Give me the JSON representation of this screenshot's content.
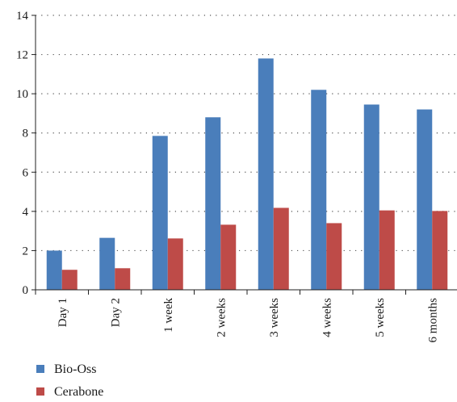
{
  "chart_data": {
    "type": "bar",
    "categories": [
      "Day 1",
      "Day 2",
      "1 week",
      "2 weeks",
      "3 weeks",
      "4 weeks",
      "5 weeks",
      "6 months"
    ],
    "series": [
      {
        "name": "Bio-Oss",
        "color": "#4a7ebb",
        "values": [
          2.0,
          2.65,
          7.85,
          8.8,
          11.8,
          10.2,
          9.45,
          9.2
        ]
      },
      {
        "name": "Cerabone",
        "color": "#be4b48",
        "values": [
          1.02,
          1.1,
          2.62,
          3.32,
          4.18,
          3.4,
          4.05,
          4.02
        ]
      }
    ],
    "title": "",
    "xlabel": "",
    "ylabel": "",
    "ylim": [
      0,
      14
    ],
    "yticks": [
      0,
      2,
      4,
      6,
      8,
      10,
      12,
      14
    ],
    "grid": "dotted horizontal",
    "legend_position": "bottom-left"
  }
}
